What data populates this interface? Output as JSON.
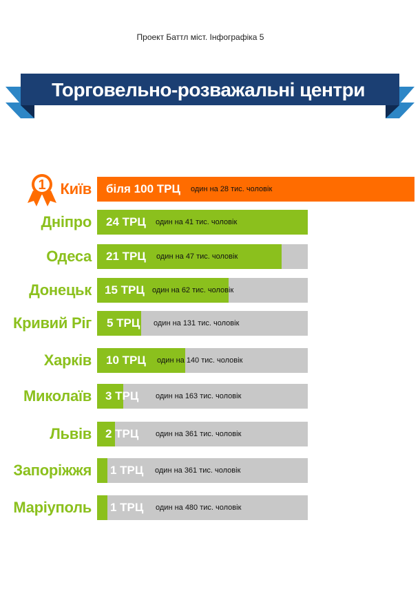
{
  "header": {
    "project_line": "Проект Баттл міст. Інфографіка 5",
    "banner_title": "Торговельно-розважальні центри"
  },
  "colors": {
    "banner_blue": "#1b3f73",
    "banner_dark": "#0f2a52",
    "ribbon_tail": "#2d86c6",
    "green": "#8bc01d",
    "orange": "#ff6c00",
    "track_gray": "#c8c8c8"
  },
  "icons": {
    "first_place": "medal-number-one-icon"
  },
  "chart_data": {
    "type": "bar",
    "title": "Торговельно-розважальні центри",
    "categories": [
      "Київ",
      "Дніпро",
      "Одеса",
      "Донецьк",
      "Кривий Ріг",
      "Харків",
      "Миколаїв",
      "Львів",
      "Запоріжжя",
      "Маріуполь"
    ],
    "values": [
      100,
      24,
      21,
      15,
      5,
      10,
      3,
      2,
      1,
      1
    ],
    "count_labels": [
      "біля 100 ТРЦ",
      "24 ТРЦ",
      "21 ТРЦ",
      "15 ТРЦ",
      "5 ТРЦ",
      "10 ТРЦ",
      "3 ТРЦ",
      "2 ТРЦ",
      "1 ТРЦ",
      "1 ТРЦ"
    ],
    "per_capita_labels": [
      "один на 28  тис. чоловік",
      "один на 41 тис. чоловік",
      "один на 47 тис. чоловік",
      "один на 62 тис. чоловік",
      "один на 131 тис. чоловік",
      "один на 140 тис. чоловік",
      "один на 163 тис. чоловік",
      "один на 361 тис. чоловік",
      "один на 361 тис. чоловік",
      "один на 480 тис. чоловік"
    ],
    "highlight_index": 0,
    "highlight_rank": "1",
    "scale_max": 24
  }
}
